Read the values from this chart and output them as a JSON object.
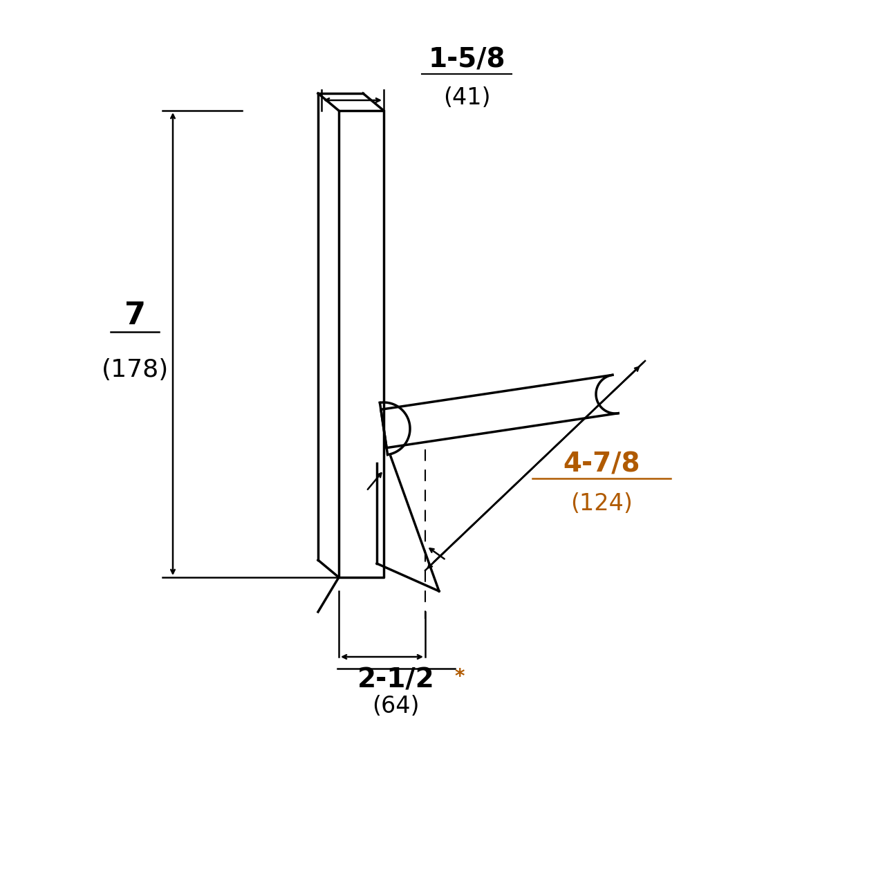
{
  "bg_color": "#ffffff",
  "line_color": "#000000",
  "dim_color_orange": "#b05a00",
  "fig_size": [
    12.8,
    12.8
  ],
  "dpi": 100,
  "dim_1_5_8": "1-5/8",
  "dim_1_5_8_mm": "(41)",
  "dim_7": "7",
  "dim_7_mm": "(178)",
  "dim_4_7_8": "4-7/8",
  "dim_4_7_8_mm": "(124)",
  "dim_2_1_2": "2-1/2",
  "dim_2_1_2_star": "*",
  "dim_2_1_2_mm": "(64)"
}
